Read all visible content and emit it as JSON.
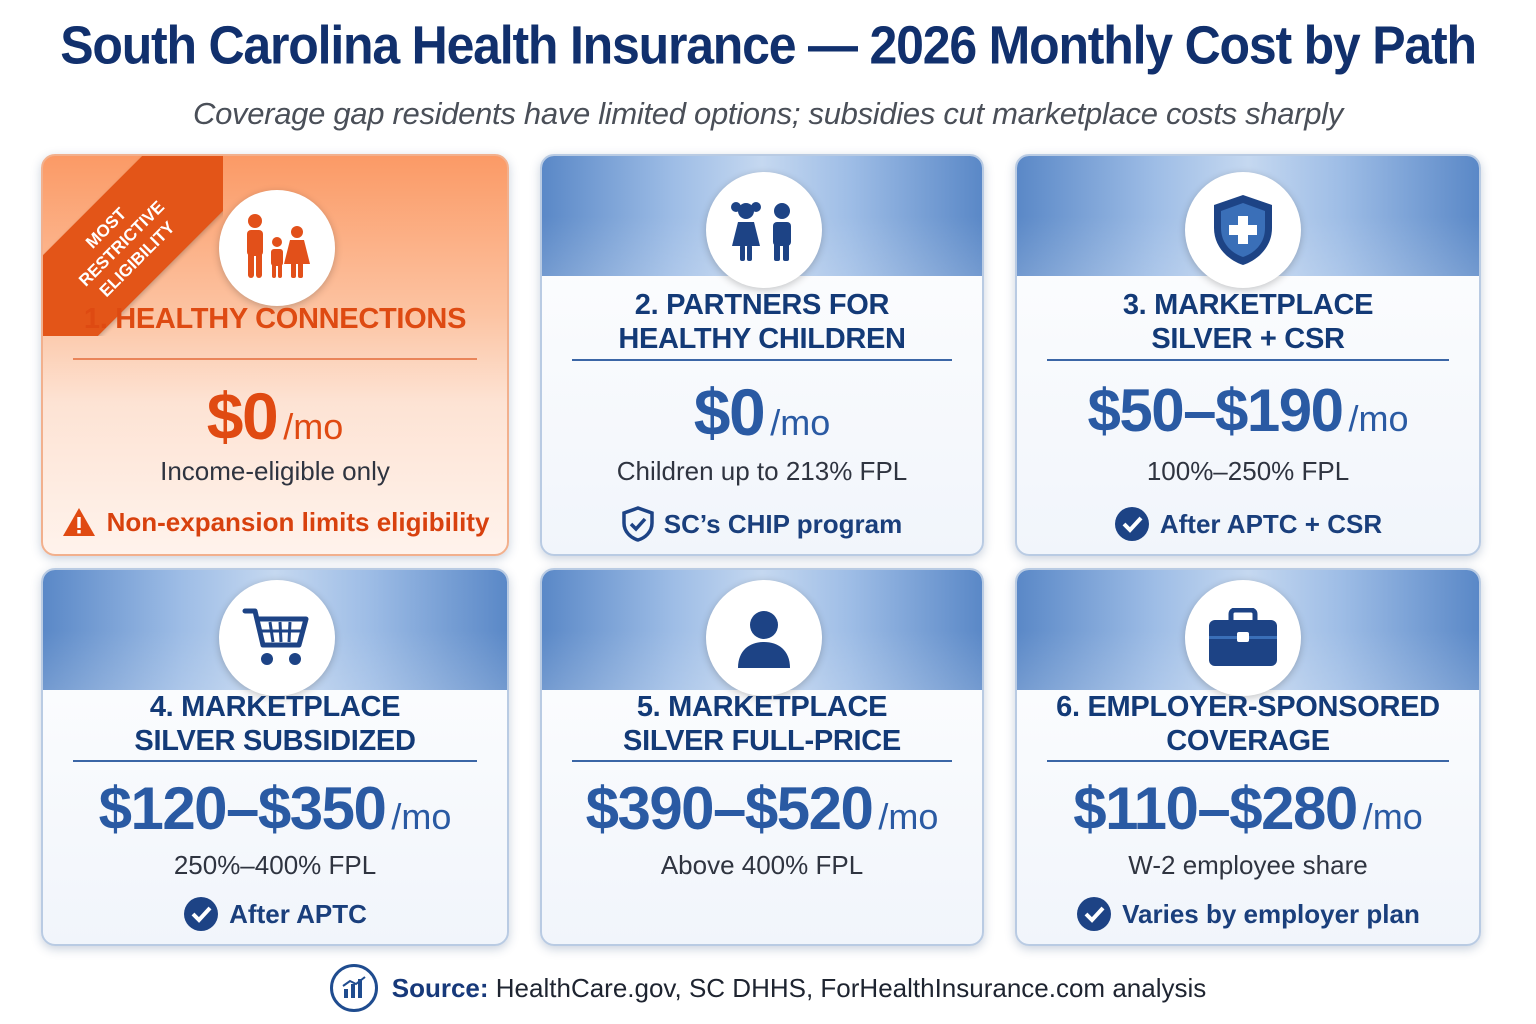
{
  "header": {
    "title": "South Carolina Health Insurance — 2026 Monthly Cost by Path",
    "subtitle": "Coverage gap residents have limited options; subsidies cut marketplace costs sharply"
  },
  "colors": {
    "navy": "#11306d",
    "blue_accent": "#2a5aa3",
    "orange_accent": "#e04a12"
  },
  "cards": [
    {
      "title_line1": "1. HEALTHY CONNECTIONS",
      "title_line2": "",
      "amount": "$0",
      "unit": "/mo",
      "description": "Income-eligible only",
      "note": "Non-expansion limits eligibility",
      "icon": "family-icon",
      "note_icon": "warning-icon",
      "ribbon": {
        "line1": "MOST",
        "line2": "RESTRICTIVE",
        "line3": "ELIGIBILITY"
      }
    },
    {
      "title_line1": "2. PARTNERS FOR",
      "title_line2": "HEALTHY CHILDREN",
      "amount": "$0",
      "unit": "/mo",
      "description": "Children up to 213% FPL",
      "note": "SC’s CHIP program",
      "icon": "children-icon",
      "note_icon": "shield-check-icon"
    },
    {
      "title_line1": "3. MARKETPLACE",
      "title_line2": "SILVER + CSR",
      "amount": "$50–$190",
      "unit": "/mo",
      "description": "100%–250% FPL",
      "note": "After APTC + CSR",
      "icon": "shield-plus-icon",
      "note_icon": "check-circle-icon"
    },
    {
      "title_line1": "4. MARKETPLACE",
      "title_line2": "SILVER SUBSIDIZED",
      "amount": "$120–$350",
      "unit": "/mo",
      "description": "250%–400% FPL",
      "note": "After APTC",
      "icon": "shopping-cart-icon",
      "note_icon": "check-circle-icon"
    },
    {
      "title_line1": "5. MARKETPLACE",
      "title_line2": "SILVER FULL-PRICE",
      "amount": "$390–$520",
      "unit": "/mo",
      "description": "Above 400% FPL",
      "icon": "person-icon"
    },
    {
      "title_line1": "6. EMPLOYER-SPONSORED",
      "title_line2": "COVERAGE",
      "amount": "$110–$280",
      "unit": "/mo",
      "description": "W-2 employee share",
      "note": "Varies by employer plan",
      "icon": "briefcase-icon",
      "note_icon": "check-circle-icon"
    }
  ],
  "footer": {
    "source_label": "Source:",
    "source_text": "HealthCare.gov, SC DHHS, ForHealthInsurance.com analysis",
    "icon": "bar-chart-icon"
  }
}
